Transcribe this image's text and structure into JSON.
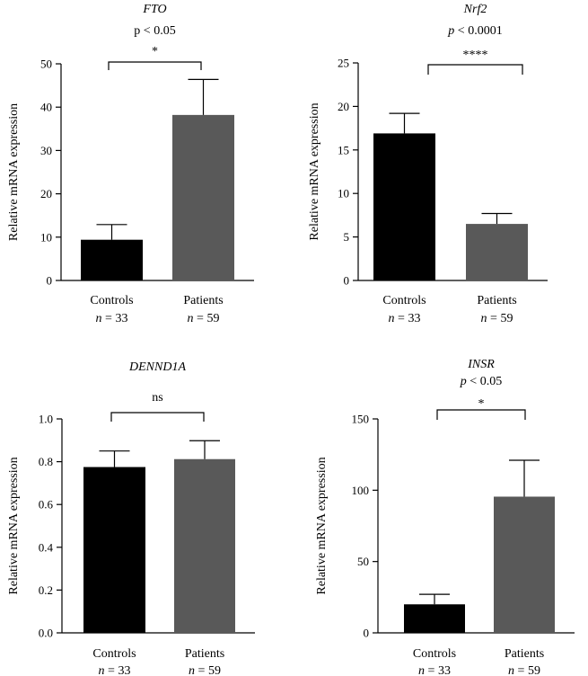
{
  "chart_data": [
    {
      "type": "bar",
      "title": "FTO",
      "ylabel": "Relative mRNA expression",
      "ylim": [
        0,
        50
      ],
      "yticks": [
        0,
        10,
        20,
        30,
        40,
        50
      ],
      "yticklabels": [
        "0",
        "10",
        "20",
        "30",
        "40",
        "50"
      ],
      "categories": [
        "Controls",
        "Patients"
      ],
      "n_labels": [
        "n = 33",
        "n = 59"
      ],
      "values": [
        9.4,
        38.2
      ],
      "error_upper": [
        12.9,
        46.4
      ],
      "colors": [
        "#000000",
        "#595959"
      ],
      "significance": {
        "p_text": "p < 0.05",
        "stars": "*"
      }
    },
    {
      "type": "bar",
      "title": "Nrf2",
      "ylabel": "Relative mRNA expression",
      "ylim": [
        0,
        25
      ],
      "yticks": [
        0,
        5,
        10,
        15,
        20,
        25
      ],
      "yticklabels": [
        "0",
        "5",
        "10",
        "15",
        "20",
        "25"
      ],
      "categories": [
        "Controls",
        "Patients"
      ],
      "n_labels": [
        "n = 33",
        "n = 59"
      ],
      "values": [
        16.9,
        6.5
      ],
      "error_upper": [
        19.2,
        7.7
      ],
      "colors": [
        "#000000",
        "#595959"
      ],
      "significance": {
        "p_text": "p < 0.0001",
        "stars": "****"
      }
    },
    {
      "type": "bar",
      "title": "DENND1A",
      "ylabel": "Relative mRNA expression",
      "ylim": [
        0,
        1
      ],
      "yticks": [
        0,
        0.2,
        0.4,
        0.6,
        0.8,
        1.0
      ],
      "yticklabels": [
        "0.0",
        "0.2",
        "0.4",
        "0.6",
        "0.8",
        "1.0"
      ],
      "categories": [
        "Controls",
        "Patients"
      ],
      "n_labels": [
        "n = 33",
        "n = 59"
      ],
      "values": [
        0.775,
        0.812
      ],
      "error_upper": [
        0.85,
        0.898
      ],
      "colors": [
        "#000000",
        "#595959"
      ],
      "significance": {
        "p_text": "",
        "stars": "ns"
      }
    },
    {
      "type": "bar",
      "title": "INSR",
      "ylabel": "Relative mRNA expression",
      "ylim": [
        0,
        150
      ],
      "yticks": [
        0,
        50,
        100,
        150
      ],
      "yticklabels": [
        "0",
        "50",
        "100",
        "150"
      ],
      "categories": [
        "Controls",
        "Patients"
      ],
      "n_labels": [
        "n = 33",
        "n = 59"
      ],
      "values": [
        20,
        95.5
      ],
      "error_upper": [
        27,
        121
      ],
      "colors": [
        "#000000",
        "#595959"
      ],
      "significance": {
        "p_text": "p < 0.05",
        "stars": "*"
      }
    }
  ]
}
